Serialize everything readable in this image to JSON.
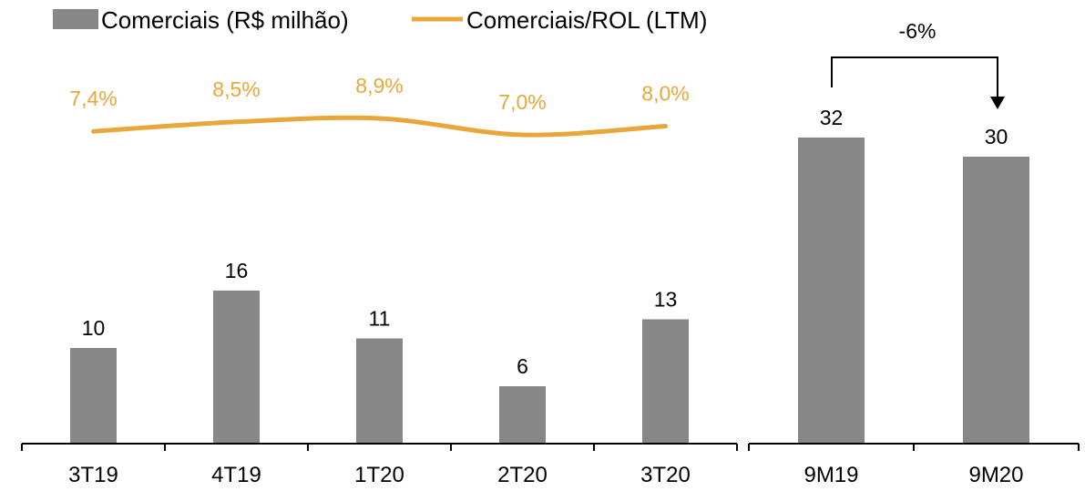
{
  "legend": {
    "bar_label": "Comerciais  (R$ milhão)",
    "line_label": "Comerciais/ROL (LTM)"
  },
  "colors": {
    "bar": "#878787",
    "line": "#E8A73A",
    "axis": "#000000"
  },
  "annotation": {
    "change_label": "-6%"
  },
  "chart_data": [
    {
      "type": "bar",
      "categories": [
        "3T19",
        "4T19",
        "1T20",
        "2T20",
        "3T20"
      ],
      "series": [
        {
          "name": "Comerciais  (R$ milhão)",
          "type": "bar",
          "values": [
            10,
            16,
            11,
            6,
            13
          ],
          "labels": [
            "10",
            "16",
            "11",
            "6",
            "13"
          ]
        },
        {
          "name": "Comerciais/ROL (LTM)",
          "type": "line",
          "values": [
            7.4,
            8.5,
            8.9,
            7.0,
            8.0
          ],
          "labels": [
            "7,4%",
            "8,5%",
            "8,9%",
            "7,0%",
            "8,0%"
          ]
        }
      ]
    },
    {
      "type": "bar",
      "categories": [
        "9M19",
        "9M20"
      ],
      "series": [
        {
          "name": "Comerciais  (R$ milhão)",
          "type": "bar",
          "values": [
            32,
            30
          ],
          "labels": [
            "32",
            "30"
          ]
        }
      ]
    }
  ]
}
